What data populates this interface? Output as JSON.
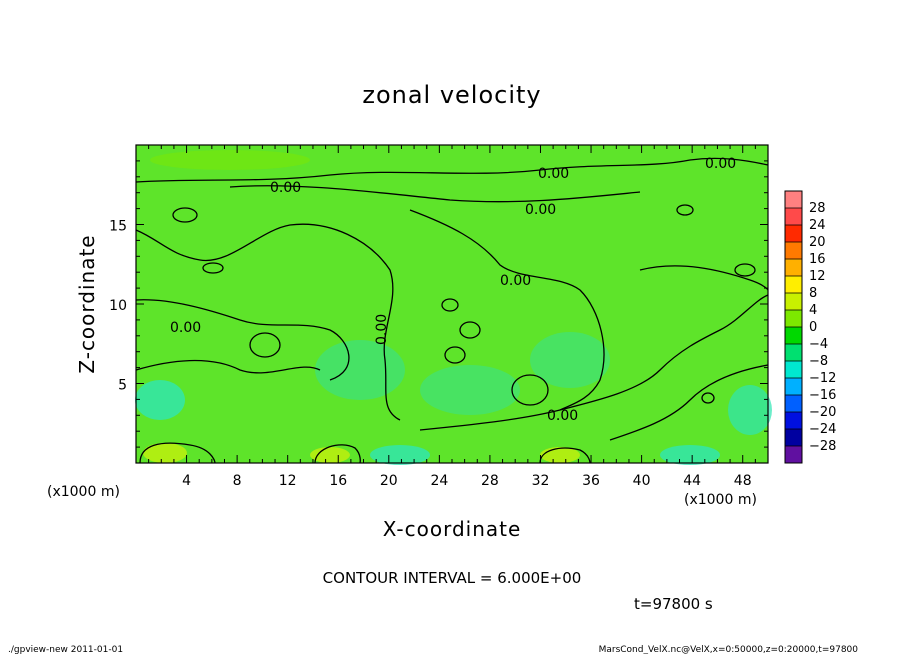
{
  "chart_data": {
    "type": "heatmap",
    "title": "zonal velocity",
    "xlabel": "X-coordinate",
    "ylabel": "Z-coordinate",
    "x_unit": "(x1000 m)",
    "y_unit": "(x1000 m)",
    "xlim": [
      0,
      50
    ],
    "ylim": [
      0,
      20
    ],
    "x_ticks": [
      "4",
      "8",
      "12",
      "16",
      "20",
      "24",
      "28",
      "32",
      "36",
      "40",
      "44",
      "48"
    ],
    "y_ticks": [
      "5",
      "10",
      "15"
    ],
    "colorbar": {
      "labels": [
        "28",
        "24",
        "20",
        "16",
        "12",
        "8",
        "4",
        "0",
        "−4",
        "−8",
        "−12",
        "−16",
        "−20",
        "−24",
        "−28"
      ],
      "colors": [
        "#ff8080",
        "#ff4a4a",
        "#ff2a00",
        "#ff7a00",
        "#ffb000",
        "#ffee00",
        "#c8f000",
        "#7de800",
        "#00d800",
        "#00e070",
        "#00e8d0",
        "#00b0ff",
        "#0060ff",
        "#0010e0",
        "#0000a0",
        "#6010a0"
      ]
    },
    "contour_labels": [
      "0.00",
      "0.00",
      "0.00",
      "0.00",
      "0.00",
      "0.00",
      "0.00",
      "0.00"
    ],
    "contour_interval": "CONTOUR INTERVAL = 6.000E+00",
    "time": "t=97800 s",
    "field_color": "#5ee42a"
  },
  "footer": {
    "left": "./gpview-new   2011-01-01",
    "right": "MarsCond_VelX.nc@VelX,x=0:50000,z=0:20000,t=97800"
  }
}
